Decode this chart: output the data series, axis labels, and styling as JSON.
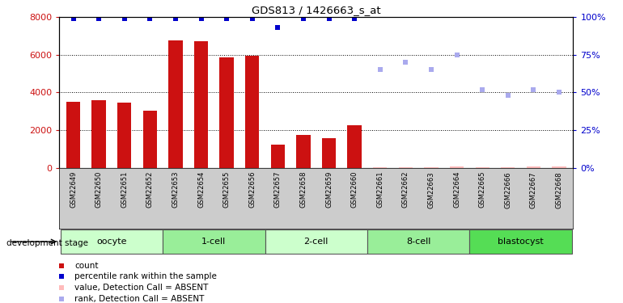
{
  "title": "GDS813 / 1426663_s_at",
  "samples": [
    "GSM22649",
    "GSM22650",
    "GSM22651",
    "GSM22652",
    "GSM22653",
    "GSM22654",
    "GSM22655",
    "GSM22656",
    "GSM22657",
    "GSM22658",
    "GSM22659",
    "GSM22660",
    "GSM22661",
    "GSM22662",
    "GSM22663",
    "GSM22664",
    "GSM22665",
    "GSM22666",
    "GSM22667",
    "GSM22668"
  ],
  "count_values": [
    3520,
    3600,
    3460,
    3020,
    6750,
    6700,
    5850,
    5950,
    1250,
    1750,
    1600,
    2250,
    0,
    0,
    0,
    0,
    0,
    0,
    0,
    0
  ],
  "count_absent": [
    false,
    false,
    false,
    false,
    false,
    false,
    false,
    false,
    false,
    false,
    false,
    false,
    true,
    true,
    true,
    true,
    true,
    true,
    true,
    true
  ],
  "rank_values": [
    99,
    99,
    99,
    99,
    99,
    99,
    99,
    99,
    93,
    99,
    99,
    99,
    null,
    null,
    null,
    null,
    null,
    null,
    null,
    null
  ],
  "rank_absent_values": [
    null,
    null,
    null,
    null,
    null,
    null,
    null,
    null,
    null,
    null,
    null,
    null,
    65,
    70,
    65,
    75,
    52,
    48,
    52,
    50
  ],
  "absent_count_tiny": [
    0,
    0,
    0,
    0,
    0,
    0,
    0,
    0,
    0,
    0,
    0,
    0,
    50,
    60,
    55,
    80,
    30,
    60,
    70,
    80
  ],
  "stages": [
    {
      "label": "oocyte",
      "start": 0,
      "end": 3,
      "color": "#ccffcc"
    },
    {
      "label": "1-cell",
      "start": 4,
      "end": 7,
      "color": "#99ee99"
    },
    {
      "label": "2-cell",
      "start": 8,
      "end": 11,
      "color": "#ccffcc"
    },
    {
      "label": "8-cell",
      "start": 12,
      "end": 15,
      "color": "#99ee99"
    },
    {
      "label": "blastocyst",
      "start": 16,
      "end": 19,
      "color": "#55dd55"
    }
  ],
  "ylim_left": [
    0,
    8000
  ],
  "ylim_right": [
    0,
    100
  ],
  "bar_color": "#cc1111",
  "bar_absent_color": "#ffbbbb",
  "rank_color": "#0000cc",
  "rank_absent_color": "#aaaaee",
  "grid_color": "#000000",
  "ytick_color_left": "#cc1111",
  "ytick_color_right": "#0000cc",
  "yticks_left": [
    0,
    2000,
    4000,
    6000,
    8000
  ],
  "yticks_right": [
    0,
    25,
    50,
    75,
    100
  ],
  "stage_row_bg": "#cccccc",
  "legend_items": [
    {
      "color": "#cc1111",
      "label": "count"
    },
    {
      "color": "#0000cc",
      "label": "percentile rank within the sample"
    },
    {
      "color": "#ffbbbb",
      "label": "value, Detection Call = ABSENT"
    },
    {
      "color": "#aaaaee",
      "label": "rank, Detection Call = ABSENT"
    }
  ]
}
